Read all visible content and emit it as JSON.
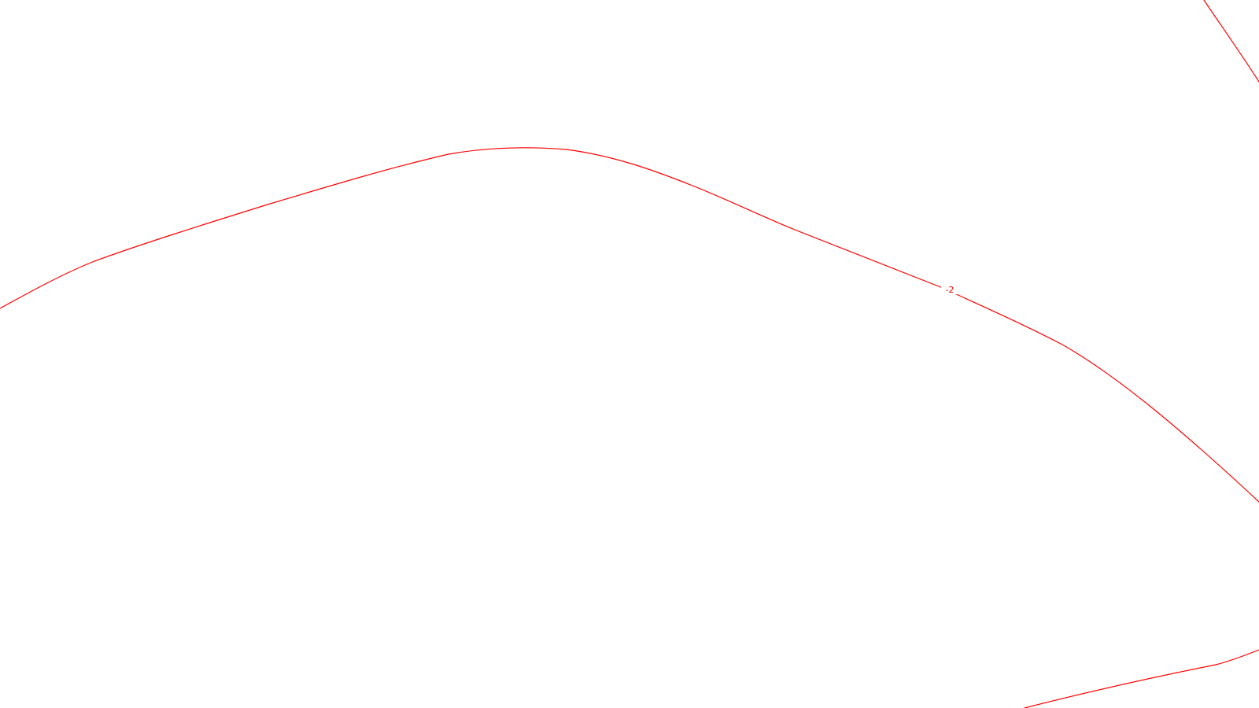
{
  "map": {
    "line_color": "#ff0000",
    "background_color": "#ffffff",
    "contours": [
      {
        "id": "main",
        "label": "-2"
      },
      {
        "id": "top-right",
        "label": ""
      },
      {
        "id": "bottom-right",
        "label": ""
      }
    ]
  }
}
